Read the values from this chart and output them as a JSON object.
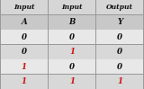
{
  "col_headers_top": [
    "Input",
    "Input",
    "Output"
  ],
  "col_headers_sub": [
    "A",
    "B",
    "Y"
  ],
  "rows": [
    [
      "0",
      "0",
      "0"
    ],
    [
      "0",
      "1",
      "0"
    ],
    [
      "1",
      "0",
      "0"
    ],
    [
      "1",
      "1",
      "1"
    ]
  ],
  "black_color": "#111111",
  "red_color": "#cc1111",
  "border_color": "#999999",
  "header_bg": "#d6d6d6",
  "subheader_bg": "#c8c8c8",
  "cell_bg_light": "#e8e8e8",
  "cell_bg_dark": "#d8d8d8",
  "outer_bg": "#b0b0b0",
  "red_cells": {
    "1": [
      1
    ],
    "2": [
      0
    ],
    "3": [
      0,
      1,
      2
    ]
  },
  "figsize": [
    1.6,
    0.99
  ],
  "dpi": 100
}
